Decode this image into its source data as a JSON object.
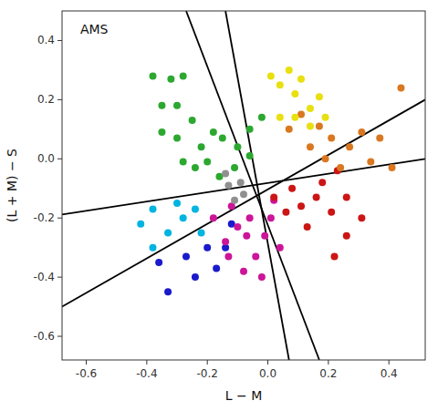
{
  "chart_data": {
    "type": "scatter",
    "title": "AMS",
    "xlabel": "L − M",
    "ylabel": "(L + M) − S",
    "xlim": [
      -0.68,
      0.52
    ],
    "ylim": [
      -0.68,
      0.5
    ],
    "xticks": [
      -0.6,
      -0.4,
      -0.2,
      {
        "value": 0.0,
        "label": "0.0"
      },
      0.2,
      0.4
    ],
    "yticks": [
      -0.6,
      -0.4,
      -0.2,
      {
        "value": 0.0,
        "label": "0.0"
      },
      0.2,
      0.4
    ],
    "grid": false,
    "series": [
      {
        "type": "line",
        "color": "black",
        "x": [
          -0.68,
          0.52
        ],
        "values": [
          -0.188,
          0.0
        ]
      },
      {
        "type": "line",
        "color": "black",
        "x": [
          -0.14,
          0.07
        ],
        "values": [
          0.5,
          -0.68
        ]
      },
      {
        "type": "line",
        "color": "black",
        "x": [
          -0.27,
          0.17
        ],
        "values": [
          0.5,
          -0.68
        ]
      },
      {
        "type": "line",
        "color": "black",
        "x": [
          -0.68,
          0.52
        ],
        "values": [
          -0.5,
          0.2
        ]
      },
      {
        "type": "scatter",
        "color": "#2ca830",
        "x": [
          -0.38,
          -0.32,
          -0.35,
          -0.28,
          -0.3,
          -0.35,
          -0.3,
          -0.25,
          -0.28,
          -0.22,
          -0.24,
          -0.18,
          -0.2,
          -0.15,
          -0.16,
          -0.1,
          -0.11,
          -0.06,
          -0.06,
          -0.02
        ],
        "values": [
          0.28,
          0.27,
          0.18,
          0.28,
          0.18,
          0.09,
          0.07,
          0.13,
          -0.01,
          0.04,
          -0.03,
          0.09,
          -0.01,
          0.07,
          -0.06,
          0.04,
          -0.03,
          0.1,
          0.01,
          0.14
        ]
      },
      {
        "type": "scatter",
        "color": "#00b4e0",
        "x": [
          -0.38,
          -0.42,
          -0.38,
          -0.3,
          -0.33,
          -0.28,
          -0.24,
          -0.22
        ],
        "values": [
          -0.17,
          -0.22,
          -0.3,
          -0.15,
          -0.25,
          -0.2,
          -0.17,
          -0.25
        ]
      },
      {
        "type": "scatter",
        "color": "#1a1acc",
        "x": [
          -0.36,
          -0.33,
          -0.27,
          -0.24,
          -0.2,
          -0.17,
          -0.14,
          -0.12
        ],
        "values": [
          -0.35,
          -0.45,
          -0.33,
          -0.4,
          -0.3,
          -0.37,
          -0.3,
          -0.22
        ]
      },
      {
        "type": "scatter",
        "color": "#cc1599",
        "x": [
          -0.18,
          -0.14,
          -0.1,
          -0.13,
          -0.07,
          -0.04,
          -0.01,
          0.01,
          -0.08,
          -0.02,
          0.04,
          -0.12,
          -0.06,
          0.02
        ],
        "values": [
          -0.2,
          -0.28,
          -0.23,
          -0.33,
          -0.26,
          -0.33,
          -0.26,
          -0.2,
          -0.38,
          -0.4,
          -0.3,
          -0.16,
          -0.2,
          -0.14
        ]
      },
      {
        "type": "scatter",
        "color": "#cc1515",
        "x": [
          0.02,
          0.06,
          0.08,
          0.11,
          0.13,
          0.16,
          0.18,
          0.21,
          0.23,
          0.26,
          0.22,
          0.26,
          0.31
        ],
        "values": [
          -0.13,
          -0.18,
          -0.1,
          -0.16,
          -0.23,
          -0.13,
          -0.08,
          -0.18,
          -0.04,
          -0.13,
          -0.33,
          -0.26,
          -0.2
        ]
      },
      {
        "type": "scatter",
        "color": "#d97820",
        "x": [
          0.07,
          0.11,
          0.14,
          0.17,
          0.19,
          0.21,
          0.24,
          0.27,
          0.31,
          0.34,
          0.37,
          0.41,
          0.44
        ],
        "values": [
          0.1,
          0.15,
          0.04,
          0.11,
          0.0,
          0.07,
          -0.03,
          0.04,
          0.09,
          -0.01,
          0.07,
          -0.03,
          0.24
        ]
      },
      {
        "type": "scatter",
        "color": "#e8e010",
        "x": [
          0.01,
          0.04,
          0.07,
          0.09,
          0.11,
          0.14,
          0.14,
          0.09,
          0.17,
          0.19,
          0.04
        ],
        "values": [
          0.28,
          0.25,
          0.3,
          0.22,
          0.27,
          0.17,
          0.11,
          0.14,
          0.21,
          0.14,
          0.14
        ]
      },
      {
        "type": "scatter",
        "color": "#909090",
        "x": [
          -0.13,
          -0.11,
          -0.09,
          -0.14,
          -0.08
        ],
        "values": [
          -0.09,
          -0.14,
          -0.08,
          -0.05,
          -0.12
        ]
      }
    ]
  }
}
